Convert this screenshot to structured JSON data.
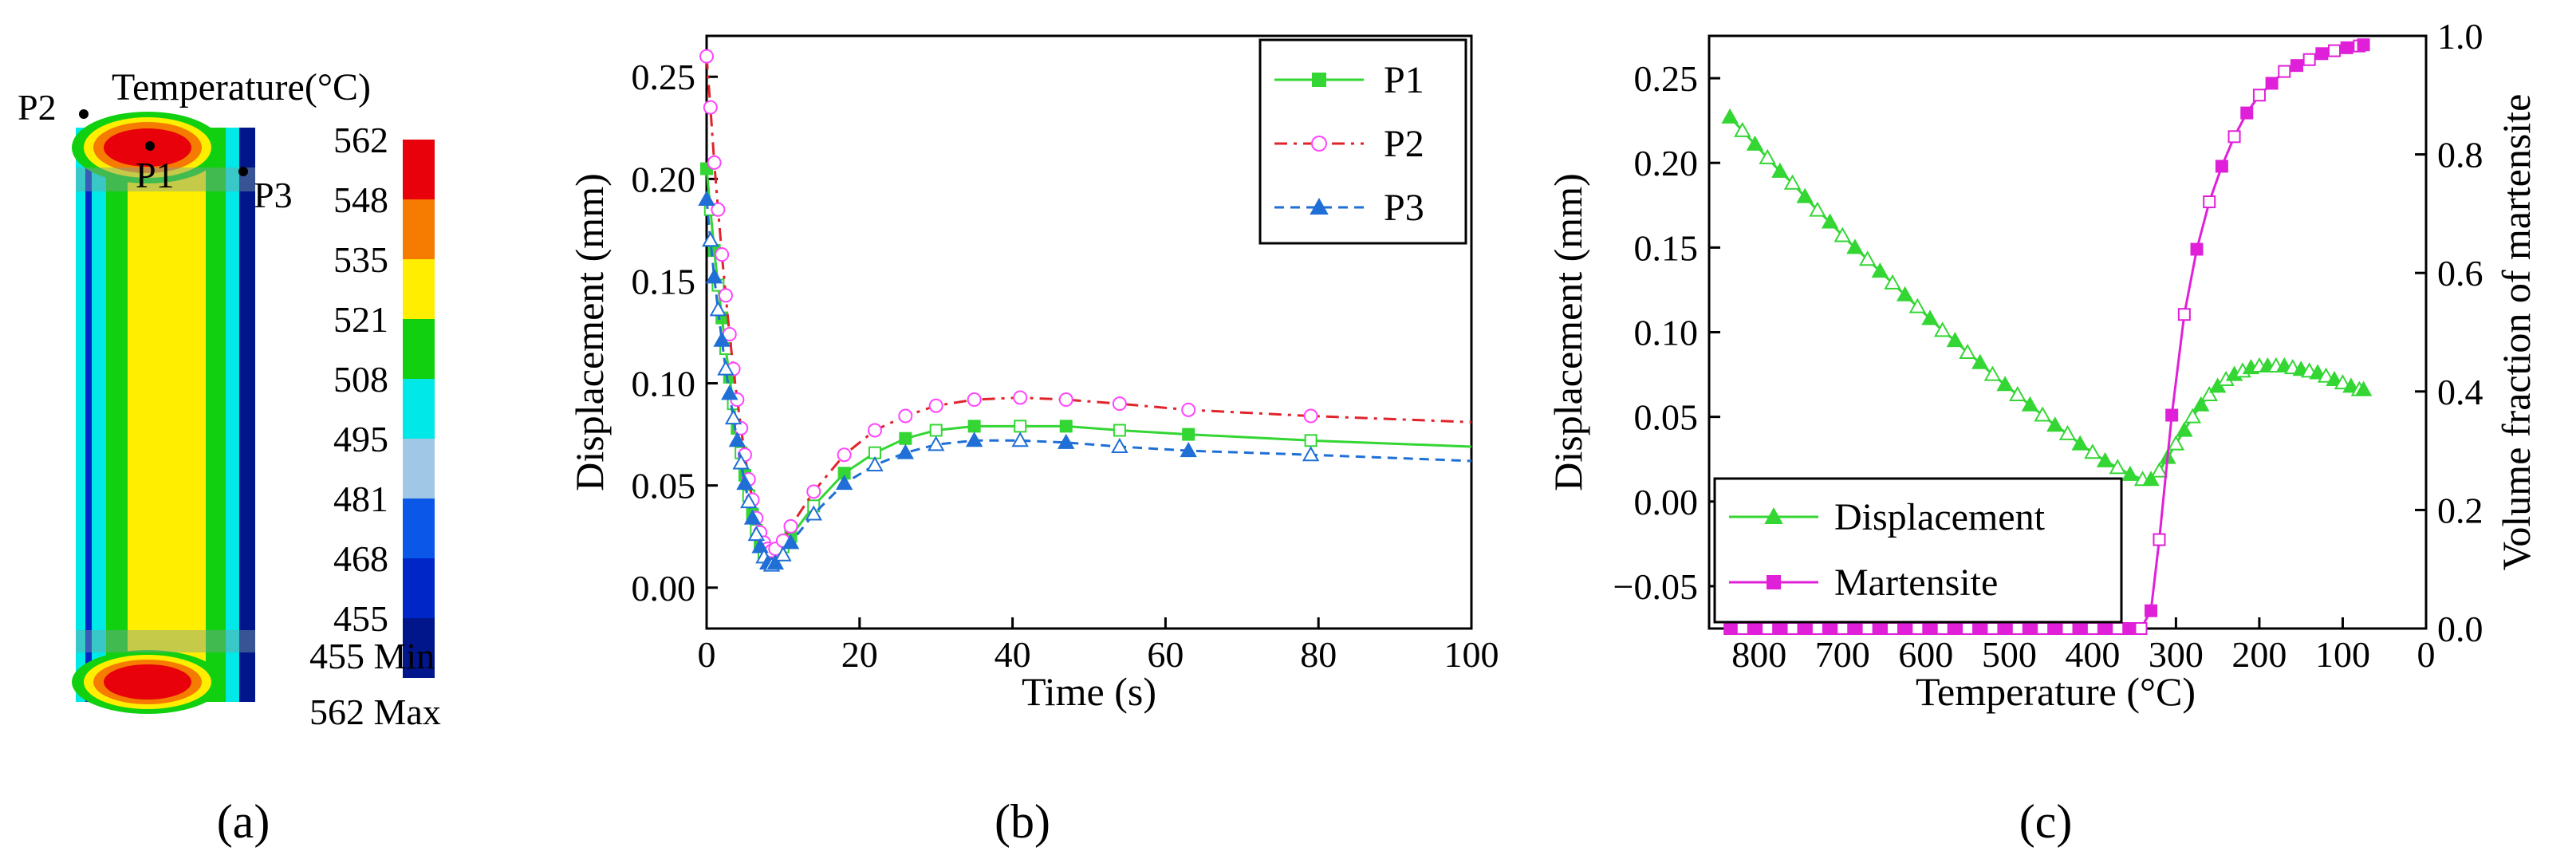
{
  "panel_labels": [
    "(a)",
    "(b)",
    "(c)"
  ],
  "panel_a": {
    "title": "Temperature(°C)",
    "points": [
      "P1",
      "P2",
      "P3"
    ],
    "colorbar": {
      "ticks": [
        "562",
        "548",
        "535",
        "521",
        "508",
        "495",
        "481",
        "468",
        "455"
      ],
      "colors": [
        "#e8000b",
        "#f57c00",
        "#ffee00",
        "#10d010",
        "#00e8e8",
        "#a0c8e6",
        "#0a57e8",
        "#0026c8",
        "#00168a"
      ]
    },
    "min_label": "455 Min",
    "max_label": "562 Max"
  },
  "chart_data": [
    {
      "type": "line",
      "panel": "b",
      "xlabel": "Time (s)",
      "ylabel": "Displacement (mm)",
      "xlim": [
        0,
        100
      ],
      "ylim": [
        -0.02,
        0.27
      ],
      "xticks": [
        0,
        20,
        40,
        60,
        80,
        100
      ],
      "yticks": [
        0.0,
        0.05,
        0.1,
        0.15,
        0.2,
        0.25
      ],
      "legend_position": "top-right",
      "series": [
        {
          "name": "P1",
          "color": "#33d633",
          "dash": "solid",
          "marker": "square",
          "x": [
            0,
            0.5,
            1,
            1.5,
            2,
            2.5,
            3,
            3.5,
            4,
            4.5,
            5,
            5.5,
            6,
            6.5,
            7,
            7.5,
            8,
            8.5,
            9,
            10,
            11,
            14,
            18,
            22,
            26,
            30,
            35,
            41,
            47,
            54,
            63,
            79,
            100
          ],
          "y": [
            0.205,
            0.185,
            0.165,
            0.148,
            0.132,
            0.117,
            0.103,
            0.09,
            0.078,
            0.066,
            0.055,
            0.045,
            0.036,
            0.028,
            0.021,
            0.017,
            0.015,
            0.014,
            0.016,
            0.02,
            0.025,
            0.04,
            0.056,
            0.066,
            0.073,
            0.077,
            0.079,
            0.079,
            0.079,
            0.077,
            0.075,
            0.072,
            0.069
          ]
        },
        {
          "name": "P2",
          "color": "#e0242c",
          "dash": "dashdot",
          "marker": "circle",
          "marker_color": "#ff44ff",
          "x": [
            0,
            0.5,
            1,
            1.5,
            2,
            2.5,
            3,
            3.5,
            4,
            4.5,
            5,
            5.5,
            6,
            6.5,
            7,
            7.5,
            8,
            8.5,
            9,
            10,
            11,
            14,
            18,
            22,
            26,
            30,
            35,
            41,
            47,
            54,
            63,
            79,
            100
          ],
          "y": [
            0.26,
            0.235,
            0.208,
            0.185,
            0.163,
            0.143,
            0.124,
            0.107,
            0.092,
            0.078,
            0.065,
            0.053,
            0.043,
            0.034,
            0.027,
            0.022,
            0.019,
            0.018,
            0.019,
            0.023,
            0.03,
            0.047,
            0.065,
            0.077,
            0.084,
            0.089,
            0.092,
            0.093,
            0.092,
            0.09,
            0.087,
            0.084,
            0.081
          ]
        },
        {
          "name": "P3",
          "color": "#1f6fd6",
          "dash": "dashed",
          "marker": "triangle",
          "x": [
            0,
            0.5,
            1,
            1.5,
            2,
            2.5,
            3,
            3.5,
            4,
            4.5,
            5,
            5.5,
            6,
            6.5,
            7,
            7.5,
            8,
            8.5,
            9,
            10,
            11,
            14,
            18,
            22,
            26,
            30,
            35,
            41,
            47,
            54,
            63,
            79,
            100
          ],
          "y": [
            0.19,
            0.17,
            0.152,
            0.136,
            0.121,
            0.107,
            0.095,
            0.083,
            0.072,
            0.061,
            0.051,
            0.042,
            0.034,
            0.026,
            0.02,
            0.015,
            0.012,
            0.011,
            0.012,
            0.016,
            0.022,
            0.036,
            0.051,
            0.06,
            0.066,
            0.07,
            0.072,
            0.072,
            0.071,
            0.069,
            0.067,
            0.065,
            0.062
          ]
        }
      ]
    },
    {
      "type": "line",
      "panel": "c",
      "xlabel": "Temperature (°C)",
      "ylabel": "Displacement (mm)",
      "y2label": "Volume fraction of martensite",
      "xlim": [
        860,
        0
      ],
      "xreversed": true,
      "ylim": [
        -0.075,
        0.275
      ],
      "y2lim": [
        0,
        1
      ],
      "xticks": [
        800,
        700,
        600,
        500,
        400,
        300,
        200,
        100,
        0
      ],
      "yticks": [
        -0.05,
        0.0,
        0.05,
        0.1,
        0.15,
        0.2,
        0.25
      ],
      "y2ticks": [
        0.0,
        0.2,
        0.4,
        0.6,
        0.8,
        1.0
      ],
      "legend_position": "bottom-left",
      "series": [
        {
          "name": "Displacement",
          "axis": "left",
          "color": "#33d633",
          "marker": "triangle",
          "x": [
            835,
            820,
            805,
            790,
            775,
            760,
            745,
            730,
            715,
            700,
            685,
            670,
            655,
            640,
            625,
            610,
            595,
            580,
            565,
            550,
            535,
            520,
            505,
            490,
            475,
            460,
            445,
            430,
            415,
            400,
            385,
            370,
            355,
            340,
            330,
            320,
            310,
            300,
            290,
            280,
            270,
            260,
            250,
            240,
            230,
            220,
            210,
            200,
            190,
            180,
            170,
            160,
            150,
            140,
            130,
            120,
            110,
            100,
            90,
            80,
            75
          ],
          "y": [
            0.227,
            0.219,
            0.211,
            0.203,
            0.195,
            0.188,
            0.18,
            0.172,
            0.165,
            0.157,
            0.15,
            0.143,
            0.136,
            0.129,
            0.122,
            0.115,
            0.108,
            0.101,
            0.095,
            0.088,
            0.082,
            0.075,
            0.069,
            0.063,
            0.057,
            0.051,
            0.045,
            0.04,
            0.034,
            0.029,
            0.024,
            0.02,
            0.016,
            0.013,
            0.013,
            0.018,
            0.026,
            0.034,
            0.042,
            0.05,
            0.057,
            0.063,
            0.068,
            0.072,
            0.075,
            0.077,
            0.079,
            0.08,
            0.08,
            0.08,
            0.08,
            0.079,
            0.078,
            0.077,
            0.076,
            0.074,
            0.072,
            0.07,
            0.068,
            0.066,
            0.066
          ]
        },
        {
          "name": "Martensite",
          "axis": "right",
          "color": "#e020d8",
          "marker": "square",
          "x": [
            835,
            820,
            805,
            790,
            775,
            760,
            745,
            730,
            715,
            700,
            685,
            670,
            655,
            640,
            625,
            610,
            595,
            580,
            565,
            550,
            535,
            520,
            505,
            490,
            475,
            460,
            445,
            430,
            415,
            400,
            385,
            370,
            355,
            342,
            330,
            320,
            305,
            290,
            275,
            260,
            245,
            230,
            215,
            200,
            185,
            170,
            155,
            140,
            125,
            110,
            95,
            80,
            75
          ],
          "y": [
            0,
            0,
            0,
            0,
            0,
            0,
            0,
            0,
            0,
            0,
            0,
            0,
            0,
            0,
            0,
            0,
            0,
            0,
            0,
            0,
            0,
            0,
            0,
            0,
            0,
            0,
            0,
            0,
            0,
            0,
            0,
            0,
            0,
            0,
            0.03,
            0.15,
            0.36,
            0.53,
            0.64,
            0.72,
            0.78,
            0.83,
            0.87,
            0.9,
            0.92,
            0.94,
            0.95,
            0.96,
            0.97,
            0.975,
            0.98,
            0.983,
            0.985
          ]
        }
      ]
    }
  ]
}
